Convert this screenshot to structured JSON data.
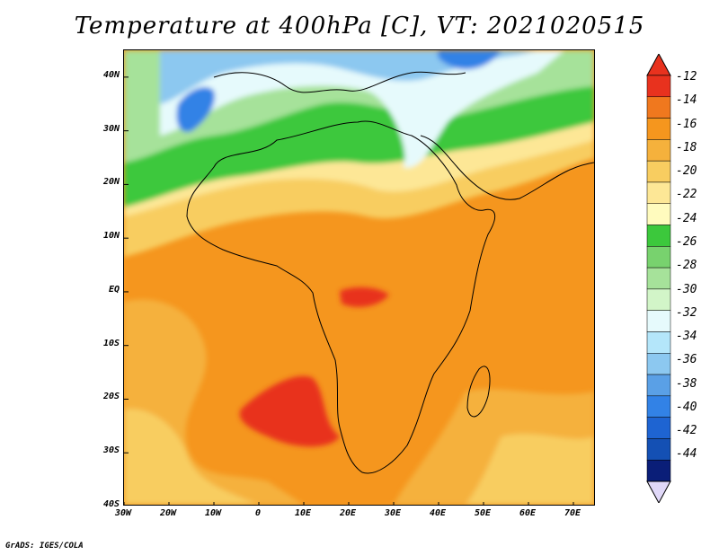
{
  "title": "Temperature at 400hPa [C], VT: 2021020515",
  "credit": "GrADS: IGES/COLA",
  "map": {
    "lat_labels": [
      "40N",
      "30N",
      "20N",
      "10N",
      "EQ",
      "10S",
      "20S",
      "30S",
      "40S"
    ],
    "lat_values": [
      40,
      30,
      20,
      10,
      0,
      -10,
      -20,
      -30,
      -40
    ],
    "lon_labels": [
      "30W",
      "20W",
      "10W",
      "0",
      "10E",
      "20E",
      "30E",
      "40E",
      "50E",
      "60E",
      "70E"
    ],
    "lon_values": [
      -30,
      -20,
      -10,
      0,
      10,
      20,
      30,
      40,
      50,
      60,
      70
    ],
    "lon_range": [
      -30,
      75
    ],
    "lat_range": [
      -40,
      45
    ]
  },
  "colorbar": {
    "labels": [
      "-12",
      "-14",
      "-16",
      "-18",
      "-20",
      "-22",
      "-24",
      "-26",
      "-28",
      "-30",
      "-32",
      "-34",
      "-36",
      "-38",
      "-40",
      "-42",
      "-44"
    ],
    "colors": [
      "#e8321e",
      "#f0781e",
      "#f5961e",
      "#f5b13c",
      "#f8cd60",
      "#fde796",
      "#fffbbe",
      "#3cc83c",
      "#78d26e",
      "#a6e29a",
      "#d2f5c8",
      "#e6fafc",
      "#b4e6fa",
      "#8cc8f0",
      "#5aa0e6",
      "#3282e6",
      "#1e64d2",
      "#1450b4",
      "#0a1e78"
    ],
    "top_arrow_color": "#e8321e",
    "bottom_arrow_color": "#e0d8f8"
  }
}
